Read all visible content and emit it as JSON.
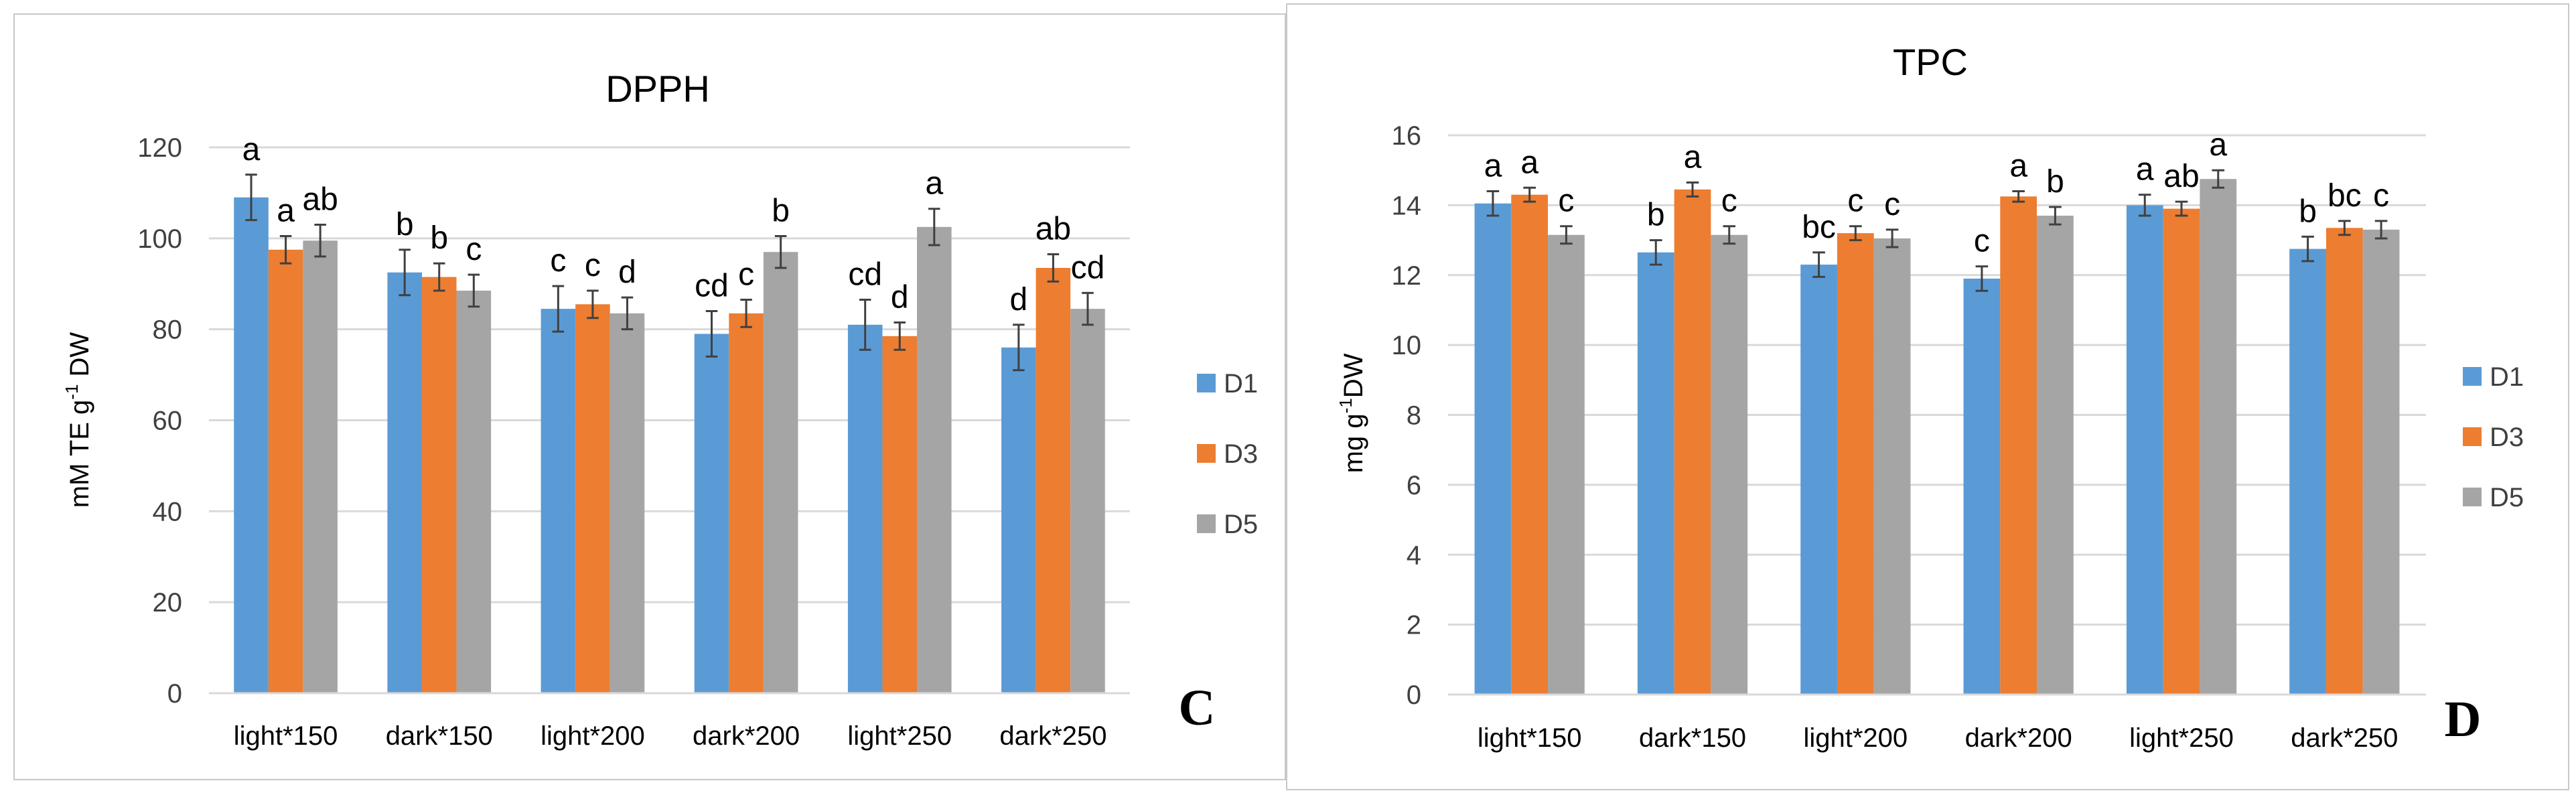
{
  "chart_data": [
    {
      "type": "bar",
      "title": "DPPH",
      "ylabel": "mM TE g-1 DW",
      "ylabel_main": "mM TE g",
      "ylabel_sup": "-1",
      "ylabel_tail": " DW",
      "xlabel": "",
      "panel_letter": "C",
      "ylim": [
        0,
        120
      ],
      "yticks": [
        "0",
        "20",
        "40",
        "60",
        "80",
        "100",
        "120"
      ],
      "categories": [
        "light*150",
        "dark*150",
        "light*200",
        "dark*200",
        "light*250",
        "dark*250"
      ],
      "series": [
        {
          "name": "D1",
          "color": "#5B9BD5",
          "values": [
            109,
            92.5,
            84.5,
            79,
            81,
            76
          ],
          "errors": [
            5,
            5,
            5,
            5,
            5.5,
            5
          ],
          "letters": [
            "a",
            "b",
            "c",
            "cd",
            "cd",
            "d"
          ]
        },
        {
          "name": "D3",
          "color": "#ED7D31",
          "values": [
            97.5,
            91.5,
            85.5,
            83.5,
            78.5,
            93.5
          ],
          "errors": [
            3,
            3,
            3,
            3,
            3,
            3
          ],
          "letters": [
            "a",
            "b",
            "c",
            "c",
            "d",
            "ab"
          ]
        },
        {
          "name": "D5",
          "color": "#A5A5A5",
          "values": [
            99.5,
            88.5,
            83.5,
            97,
            102.5,
            84.5
          ],
          "errors": [
            3.5,
            3.5,
            3.5,
            3.5,
            4,
            3.5
          ],
          "letters": [
            "ab",
            "c",
            "d",
            "b",
            "a",
            "cd"
          ]
        }
      ],
      "legend": "right",
      "grid": true
    },
    {
      "type": "bar",
      "title": "TPC",
      "ylabel": "mg g-1DW",
      "ylabel_main": "mg g",
      "ylabel_sup": "-1",
      "ylabel_tail": "DW",
      "xlabel": "",
      "panel_letter": "D",
      "ylim": [
        0,
        16
      ],
      "yticks": [
        "0",
        "2",
        "4",
        "6",
        "8",
        "10",
        "12",
        "14",
        "16"
      ],
      "categories": [
        "light*150",
        "dark*150",
        "light*200",
        "dark*200",
        "light*250",
        "dark*250"
      ],
      "series": [
        {
          "name": "D1",
          "color": "#5B9BD5",
          "values": [
            14.05,
            12.65,
            12.3,
            11.9,
            14.0,
            12.75
          ],
          "errors": [
            0.35,
            0.35,
            0.35,
            0.35,
            0.3,
            0.35
          ],
          "letters": [
            "a",
            "b",
            "bc",
            "c",
            "a",
            "b"
          ]
        },
        {
          "name": "D3",
          "color": "#ED7D31",
          "values": [
            14.3,
            14.45,
            13.2,
            14.25,
            13.9,
            13.35
          ],
          "errors": [
            0.2,
            0.2,
            0.2,
            0.15,
            0.2,
            0.2
          ],
          "letters": [
            "a",
            "a",
            "c",
            "a",
            "ab",
            "bc"
          ]
        },
        {
          "name": "D5",
          "color": "#A5A5A5",
          "values": [
            13.15,
            13.15,
            13.05,
            13.7,
            14.75,
            13.3
          ],
          "errors": [
            0.25,
            0.25,
            0.25,
            0.25,
            0.25,
            0.25
          ],
          "letters": [
            "c",
            "c",
            "c",
            "b",
            "a",
            "c"
          ]
        }
      ],
      "legend": "right",
      "grid": true
    }
  ],
  "colors": {
    "grid": "#d9d9d9",
    "axis": "#d9d9d9",
    "text": "#000000",
    "tick_text": "#404040",
    "error_bar": "#404040"
  }
}
